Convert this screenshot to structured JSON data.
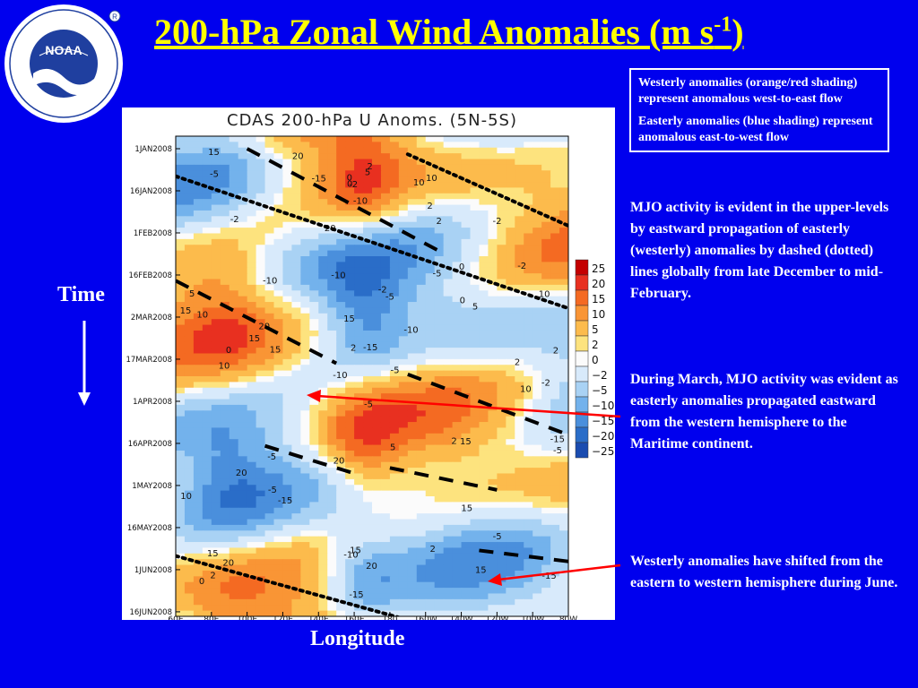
{
  "slide": {
    "title": "200-hPa Zonal Wind Anomalies (m s",
    "title_superscript": "-1",
    "title_close": ")",
    "time_label": "Time",
    "longitude_label": "Longitude"
  },
  "logo": {
    "icon": "noaa-logo",
    "text": "NOAA"
  },
  "legend_box": {
    "westerly": "Westerly anomalies (orange/red shading) represent anomalous west-to-east flow",
    "easterly": "Easterly anomalies (blue shading) represent anomalous east-to-west flow"
  },
  "notes": [
    "MJO activity is evident in the upper-levels by eastward propagation of easterly (westerly) anomalies by dashed (dotted) lines globally from late December to mid-February.",
    "During March, MJO activity was evident as easterly anomalies propagated eastward from the western hemisphere to the Maritime continent.",
    "Westerly anomalies have shifted from the eastern to western hemisphere during June."
  ],
  "colors": {
    "background": "#0000ee",
    "title": "#ffff00",
    "text": "#ffffff",
    "annotation_arrow": "#ff0000"
  },
  "chart_data": {
    "type": "heatmap",
    "title": "CDAS 200-hPa U Anoms. (5N-5S)",
    "x_ticks": [
      "60E",
      "80E",
      "100E",
      "120E",
      "140E",
      "160E",
      "180",
      "160W",
      "140W",
      "120W",
      "100W",
      "80W"
    ],
    "x_range": [
      60,
      280
    ],
    "y_ticks": [
      "1JAN2008",
      "16JAN2008",
      "1FEB2008",
      "16FEB2008",
      "2MAR2008",
      "17MAR2008",
      "1APR2008",
      "16APR2008",
      "1MAY2008",
      "16MAY2008",
      "1JUN2008",
      "16JUN2008"
    ],
    "colorbar_levels": [
      25,
      20,
      15,
      10,
      5,
      2,
      0,
      -2,
      -5,
      -10,
      -15,
      -20,
      -25
    ],
    "colorbar_labels": [
      "25",
      "20",
      "15",
      "10",
      "5",
      "2",
      "0",
      "−2",
      "−5",
      "−10",
      "−15",
      "−20",
      "−25"
    ],
    "colorbar_colors": [
      "#c40000",
      "#e83020",
      "#f46a22",
      "#f99535",
      "#fcbb4c",
      "#fde37e",
      "#fbfbfb",
      "#d8eafb",
      "#a9d2f4",
      "#73b2ec",
      "#4a8fdc",
      "#2a6dc8",
      "#1a4cb0"
    ],
    "contour_labels": [
      "-2",
      "-5",
      "2",
      "5",
      "10",
      "15",
      "20",
      "-10",
      "-15",
      "0"
    ],
    "dashed_lines": [
      [
        [
          100,
          0
        ],
        [
          210,
          38
        ]
      ],
      [
        [
          60,
          48
        ],
        [
          150,
          78
        ]
      ],
      [
        [
          190,
          82
        ],
        [
          280,
          104
        ]
      ],
      [
        [
          110,
          108
        ],
        [
          160,
          118
        ]
      ],
      [
        [
          180,
          116
        ],
        [
          240,
          124
        ]
      ],
      [
        [
          230,
          146
        ],
        [
          280,
          150
        ]
      ]
    ],
    "dotted_lines": [
      [
        [
          190,
          2
        ],
        [
          280,
          28
        ]
      ],
      [
        [
          60,
          10
        ],
        [
          280,
          58
        ]
      ],
      [
        [
          60,
          148
        ],
        [
          250,
          182
        ]
      ]
    ]
  }
}
